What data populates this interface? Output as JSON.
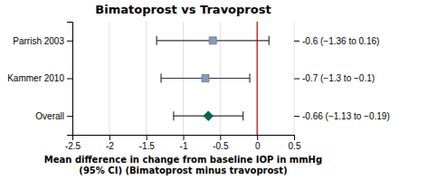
{
  "chart_data": {
    "type": "forest",
    "orientation": "horizontal",
    "title": "Bimatoprost vs Travoprost",
    "x_label": [
      "Mean difference in change from baseline IOP in mmHg",
      "(95% CI) (Bimatoprost minus travoprost)"
    ],
    "categories": [
      "Parrish 2003",
      "Kammer 2010",
      "Overall"
    ],
    "annotations": [
      "-0.6 (−1.36 to 0.16)",
      "-0.7 (−1.3 to −0.1)",
      "-0.66 (−1.13 to −0.19)"
    ],
    "series": [
      {
        "marker": "square",
        "color": "#8899bb",
        "values": [
          -0.6,
          -0.7,
          null
        ],
        "ci_low": [
          -1.36,
          -1.3,
          null
        ],
        "ci_high": [
          0.16,
          -0.1,
          null
        ]
      },
      {
        "marker": "diamond",
        "color": "#006655",
        "values": [
          null,
          null,
          -0.66
        ],
        "ci_low": [
          null,
          null,
          -1.13
        ],
        "ci_high": [
          null,
          null,
          -0.19
        ]
      }
    ],
    "xlim": [
      -2.5,
      0.5
    ],
    "xticks": [
      -2.5,
      -2,
      -1.5,
      -1,
      -0.5,
      0,
      0.5
    ],
    "reference_lines": [
      {
        "value": 0,
        "color": "#cc0000"
      }
    ],
    "grid": true
  }
}
